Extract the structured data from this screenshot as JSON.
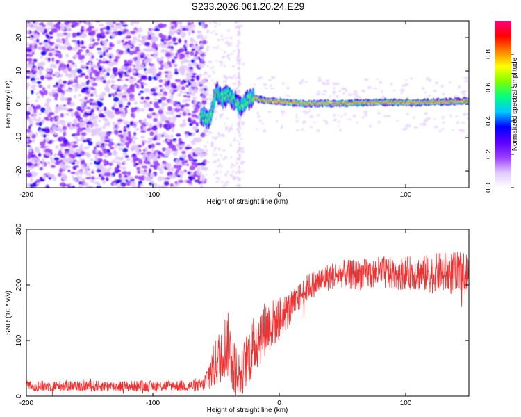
{
  "figure_title": "S233.2026.061.20.24.E29",
  "chart_data": [
    {
      "type": "heatmap",
      "title": "S233.2026.061.20.24.E29",
      "xlabel": "Height of straight line (km)",
      "ylabel": "Frequency (Hz)",
      "xlim": [
        -200,
        150
      ],
      "ylim": [
        -25,
        25
      ],
      "xticks": [
        -200,
        -100,
        0,
        100
      ],
      "yticks": [
        20,
        10,
        0,
        -10,
        -20
      ],
      "colorbar": {
        "label": "Normalized spectral amplitude",
        "range": [
          0,
          1
        ],
        "ticks": [
          0.0,
          0.2,
          0.4,
          0.6,
          0.8
        ],
        "colormap": [
          "#ffffff",
          "#e0c8ff",
          "#9a3cff",
          "#5a00ff",
          "#0000ff",
          "#00c8ff",
          "#00ff80",
          "#80ff00",
          "#ffff00",
          "#ff8000",
          "#ff0000",
          "#ff0080"
        ]
      },
      "regions": [
        {
          "name": "noise",
          "x_range": [
            -200,
            -62
          ],
          "freq_range": [
            -25,
            25
          ],
          "amplitude": "low, scattered"
        },
        {
          "name": "transition",
          "x_range": [
            -62,
            -20
          ],
          "freq_range": [
            -6,
            4
          ],
          "amplitude": "medium"
        },
        {
          "name": "carrier",
          "x_range": [
            -20,
            150
          ],
          "freq_range": [
            -1,
            2
          ],
          "amplitude": "high",
          "center_freq_hz": 0.5
        }
      ],
      "carrier_trace": [
        {
          "x": -62,
          "f": -3.5
        },
        {
          "x": -55,
          "f": -4.5
        },
        {
          "x": -50,
          "f": 3.5
        },
        {
          "x": -45,
          "f": 2
        },
        {
          "x": -40,
          "f": 3
        },
        {
          "x": -35,
          "f": 1
        },
        {
          "x": -30,
          "f": -1
        },
        {
          "x": -25,
          "f": 1.5
        },
        {
          "x": -20,
          "f": 2
        },
        {
          "x": -10,
          "f": 1
        },
        {
          "x": 0,
          "f": 0.8
        },
        {
          "x": 20,
          "f": 0.2
        },
        {
          "x": 50,
          "f": 0.3
        },
        {
          "x": 80,
          "f": 0.6
        },
        {
          "x": 110,
          "f": 0.5
        },
        {
          "x": 150,
          "f": 1
        }
      ]
    },
    {
      "type": "line",
      "xlabel": "Height of straight line (km)",
      "ylabel": "SNR (10 * v/v)",
      "xlim": [
        -200,
        150
      ],
      "ylim": [
        0,
        300
      ],
      "xticks": [
        -200,
        -100,
        0,
        100
      ],
      "yticks": [
        0,
        100,
        200,
        300
      ],
      "color": "#ee3333",
      "series": [
        {
          "name": "SNR",
          "x": [
            -200,
            -180,
            -160,
            -140,
            -120,
            -100,
            -80,
            -70,
            -60,
            -55,
            -50,
            -45,
            -42,
            -40,
            -38,
            -35,
            -32,
            -30,
            -28,
            -25,
            -22,
            -20,
            -18,
            -15,
            -12,
            -10,
            -5,
            0,
            5,
            10,
            15,
            20,
            25,
            30,
            40,
            50,
            60,
            70,
            80,
            90,
            100,
            110,
            120,
            130,
            140,
            150
          ],
          "y": [
            18,
            18,
            19,
            18,
            18,
            18,
            19,
            18,
            20,
            40,
            60,
            80,
            95,
            90,
            70,
            50,
            40,
            35,
            55,
            70,
            80,
            90,
            100,
            110,
            120,
            125,
            130,
            140,
            150,
            160,
            175,
            190,
            200,
            205,
            215,
            220,
            218,
            220,
            222,
            220,
            222,
            221,
            220,
            222,
            220,
            220
          ],
          "noise_half_range": [
            10,
            10,
            10,
            10,
            10,
            10,
            10,
            10,
            12,
            35,
            45,
            55,
            60,
            60,
            55,
            50,
            45,
            40,
            45,
            50,
            55,
            55,
            55,
            55,
            50,
            50,
            45,
            40,
            35,
            30,
            25,
            25,
            25,
            25,
            25,
            25,
            28,
            28,
            30,
            30,
            30,
            32,
            35,
            38,
            40,
            40
          ]
        }
      ]
    }
  ]
}
